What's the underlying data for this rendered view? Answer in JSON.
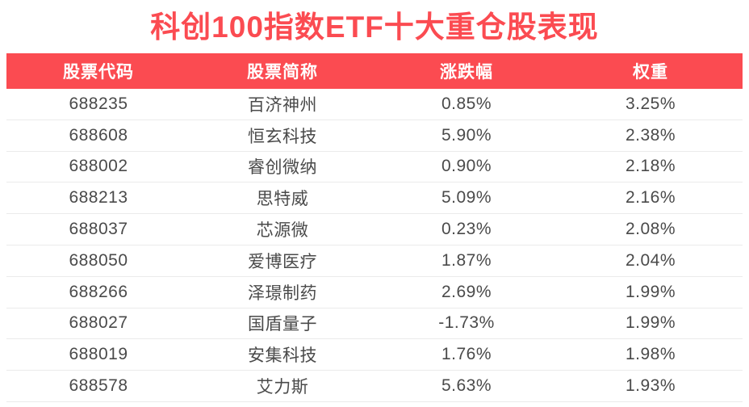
{
  "title": "科创100指数ETF十大重仓股表现",
  "colors": {
    "accent": "#fb4b51",
    "header_text": "#ffffff",
    "cell_text": "#4a4a4a",
    "divider": "#ebebeb",
    "background": "#ffffff"
  },
  "table": {
    "headers": [
      "股票代码",
      "股票简称",
      "涨跌幅",
      "权重"
    ],
    "rows": [
      {
        "code": "688235",
        "name": "百济神州",
        "change": "0.85%",
        "weight": "3.25%"
      },
      {
        "code": "688608",
        "name": "恒玄科技",
        "change": "5.90%",
        "weight": "2.38%"
      },
      {
        "code": "688002",
        "name": "睿创微纳",
        "change": "0.90%",
        "weight": "2.18%"
      },
      {
        "code": "688213",
        "name": "思特威",
        "change": "5.09%",
        "weight": "2.16%"
      },
      {
        "code": "688037",
        "name": "芯源微",
        "change": "0.23%",
        "weight": "2.08%"
      },
      {
        "code": "688050",
        "name": "爱博医疗",
        "change": "1.87%",
        "weight": "2.04%"
      },
      {
        "code": "688266",
        "name": "泽璟制药",
        "change": "2.69%",
        "weight": "1.99%"
      },
      {
        "code": "688027",
        "name": "国盾量子",
        "change": "-1.73%",
        "weight": "1.99%"
      },
      {
        "code": "688019",
        "name": "安集科技",
        "change": "1.76%",
        "weight": "1.98%"
      },
      {
        "code": "688578",
        "name": "艾力斯",
        "change": "5.63%",
        "weight": "1.93%"
      }
    ]
  },
  "chart_data": {
    "type": "table",
    "title": "科创100指数ETF十大重仓股表现",
    "columns": [
      "股票代码",
      "股票简称",
      "涨跌幅",
      "权重"
    ],
    "rows": [
      [
        "688235",
        "百济神州",
        "0.85%",
        "3.25%"
      ],
      [
        "688608",
        "恒玄科技",
        "5.90%",
        "2.38%"
      ],
      [
        "688002",
        "睿创微纳",
        "0.90%",
        "2.18%"
      ],
      [
        "688213",
        "思特威",
        "5.09%",
        "2.16%"
      ],
      [
        "688037",
        "芯源微",
        "0.23%",
        "2.08%"
      ],
      [
        "688050",
        "爱博医疗",
        "1.87%",
        "2.04%"
      ],
      [
        "688266",
        "泽璟制药",
        "2.69%",
        "1.99%"
      ],
      [
        "688027",
        "国盾量子",
        "-1.73%",
        "1.99%"
      ],
      [
        "688019",
        "安集科技",
        "1.76%",
        "1.98%"
      ],
      [
        "688578",
        "艾力斯",
        "5.63%",
        "1.93%"
      ]
    ],
    "change_values_pct": [
      0.85,
      5.9,
      0.9,
      5.09,
      0.23,
      1.87,
      2.69,
      -1.73,
      1.76,
      5.63
    ],
    "weight_values_pct": [
      3.25,
      2.38,
      2.18,
      2.16,
      2.08,
      2.04,
      1.99,
      1.99,
      1.98,
      1.93
    ]
  }
}
